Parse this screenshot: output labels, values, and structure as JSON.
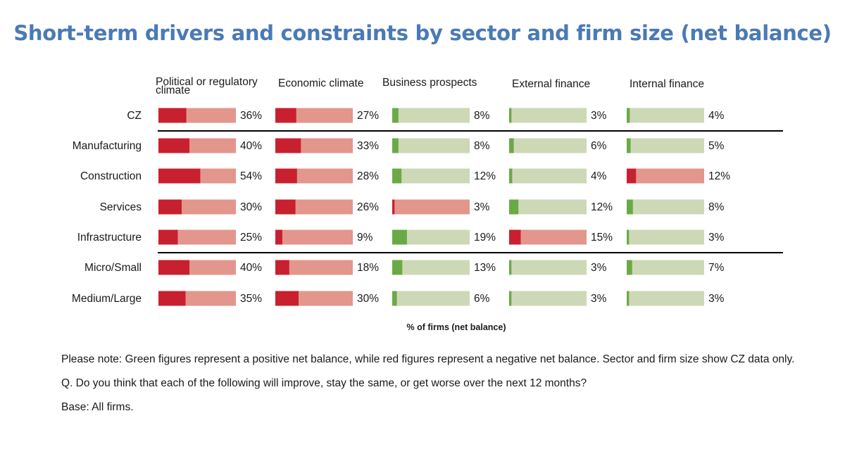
{
  "title": "Short-term drivers and constraints by sector and firm size (net balance)",
  "chart_data": {
    "type": "bar",
    "orientation": "horizontal",
    "scale_max_percent": 100,
    "xlabel": "% of firms (net balance)",
    "categories": [
      "CZ",
      "Manufacturing",
      "Construction",
      "Services",
      "Infrastructure",
      "Micro/Small",
      "Medium/Large"
    ],
    "series": [
      {
        "name": "Political or regulatory climate",
        "label_lines": [
          "Political or regulatory",
          "climate"
        ],
        "values": [
          36,
          40,
          54,
          30,
          25,
          40,
          35
        ],
        "signs": [
          "neg",
          "neg",
          "neg",
          "neg",
          "neg",
          "neg",
          "neg"
        ]
      },
      {
        "name": "Economic climate",
        "label_lines": [
          "Economic climate"
        ],
        "values": [
          27,
          33,
          28,
          26,
          9,
          18,
          30
        ],
        "signs": [
          "neg",
          "neg",
          "neg",
          "neg",
          "neg",
          "neg",
          "neg"
        ]
      },
      {
        "name": "Business prospects",
        "label_lines": [
          "Business prospects"
        ],
        "values": [
          8,
          8,
          12,
          3,
          19,
          13,
          6
        ],
        "signs": [
          "pos",
          "pos",
          "pos",
          "neg",
          "pos",
          "pos",
          "pos"
        ]
      },
      {
        "name": "External finance",
        "label_lines": [
          "External finance"
        ],
        "values": [
          3,
          6,
          4,
          12,
          15,
          3,
          3
        ],
        "signs": [
          "pos",
          "pos",
          "pos",
          "pos",
          "neg",
          "pos",
          "pos"
        ]
      },
      {
        "name": "Internal finance",
        "label_lines": [
          "Internal finance"
        ],
        "values": [
          4,
          5,
          12,
          8,
          3,
          7,
          3
        ],
        "signs": [
          "pos",
          "pos",
          "neg",
          "pos",
          "pos",
          "pos",
          "pos"
        ]
      }
    ],
    "value_suffix": "%",
    "colors": {
      "neg_fill": "#c8202f",
      "neg_track": "#e3968c",
      "pos_fill": "#6aaa46",
      "pos_track": "#cdd9b6"
    },
    "separators_after": [
      "CZ",
      "Infrastructure"
    ]
  },
  "notes": {
    "note": "Please note: Green figures represent a positive net balance, while red figures represent a negative net balance. Sector and firm size show CZ data only.",
    "question": "Q. Do you think that each of the following will improve, stay the same, or get worse over the next 12 months?",
    "base": "Base: All firms."
  }
}
